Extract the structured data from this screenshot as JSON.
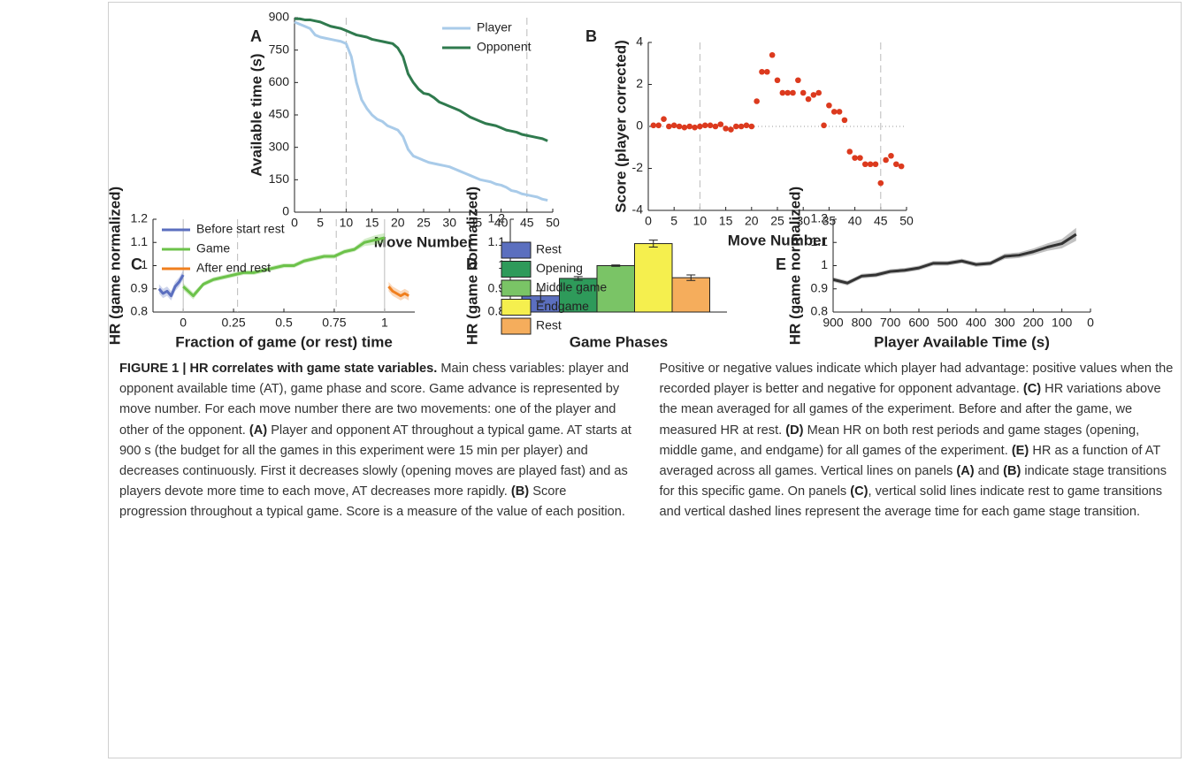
{
  "chart_data": [
    {
      "type": "line",
      "panel_label": "A",
      "xlabel": "Move Number",
      "ylabel": "Available time (s)",
      "x": [
        0,
        1,
        2,
        3,
        4,
        5,
        6,
        7,
        8,
        9,
        10,
        11,
        12,
        13,
        14,
        15,
        16,
        17,
        18,
        19,
        20,
        21,
        22,
        23,
        24,
        25,
        26,
        27,
        28,
        29,
        30,
        31,
        32,
        33,
        34,
        35,
        36,
        37,
        38,
        39,
        40,
        41,
        42,
        43,
        44,
        45,
        46,
        47,
        48,
        49
      ],
      "series": [
        {
          "name": "Player",
          "color": "#a9cbe9",
          "values": [
            880,
            870,
            860,
            850,
            820,
            810,
            805,
            800,
            795,
            790,
            780,
            720,
            600,
            520,
            480,
            450,
            430,
            420,
            400,
            390,
            380,
            350,
            290,
            260,
            250,
            240,
            230,
            225,
            220,
            215,
            210,
            200,
            190,
            180,
            170,
            160,
            150,
            145,
            140,
            130,
            125,
            115,
            100,
            95,
            85,
            80,
            75,
            70,
            60,
            55
          ]
        },
        {
          "name": "Opponent",
          "color": "#2f7a4e",
          "values": [
            895,
            895,
            890,
            890,
            885,
            880,
            870,
            860,
            855,
            850,
            840,
            830,
            820,
            815,
            810,
            800,
            795,
            790,
            785,
            780,
            760,
            720,
            640,
            600,
            570,
            550,
            545,
            530,
            510,
            500,
            490,
            480,
            470,
            455,
            440,
            430,
            420,
            410,
            405,
            400,
            390,
            380,
            375,
            370,
            360,
            355,
            350,
            345,
            340,
            330
          ]
        }
      ],
      "xlim": [
        0,
        50
      ],
      "ylim": [
        0,
        900
      ],
      "xticks": [
        0,
        5,
        10,
        15,
        20,
        25,
        30,
        35,
        40,
        45,
        50
      ],
      "yticks": [
        0,
        150,
        300,
        450,
        600,
        750,
        900
      ],
      "dashed_vlines": [
        10,
        45
      ],
      "legend": "upper right"
    },
    {
      "type": "scatter",
      "panel_label": "B",
      "xlabel": "Move Number",
      "ylabel": "Score (player corrected)",
      "color": "#dc3a1e",
      "x": [
        1,
        2,
        3,
        4,
        5,
        6,
        7,
        8,
        9,
        10,
        11,
        12,
        13,
        14,
        15,
        16,
        17,
        18,
        19,
        20,
        21,
        22,
        23,
        24,
        25,
        26,
        27,
        28,
        29,
        30,
        31,
        32,
        33,
        34,
        35,
        36,
        37,
        38,
        39,
        40,
        41,
        42,
        43,
        44,
        45,
        46,
        47,
        48,
        49
      ],
      "values": [
        0.05,
        0.05,
        0.35,
        0,
        0.05,
        0,
        -0.05,
        0,
        -0.05,
        0,
        0.05,
        0.05,
        0,
        0.1,
        -0.1,
        -0.15,
        0,
        0,
        0.05,
        0,
        1.2,
        2.6,
        2.6,
        3.4,
        2.2,
        1.6,
        1.6,
        1.6,
        2.2,
        1.6,
        1.3,
        1.5,
        1.6,
        0.05,
        1,
        0.7,
        0.7,
        0.3,
        -1.2,
        -1.5,
        -1.5,
        -1.8,
        -1.8,
        -1.8,
        -2.7,
        -1.6,
        -1.4,
        -1.8,
        -1.9
      ],
      "xlim": [
        0,
        50
      ],
      "ylim": [
        -4,
        4
      ],
      "xticks": [
        0,
        5,
        10,
        15,
        20,
        25,
        30,
        35,
        40,
        45,
        50
      ],
      "yticks": [
        -4,
        -2,
        0,
        2,
        4
      ],
      "dashed_vlines": [
        10,
        45
      ]
    },
    {
      "type": "line",
      "panel_label": "C",
      "xlabel": "Fraction of game (or rest) time",
      "ylabel": "HR (game normalized)",
      "series": [
        {
          "name": "Before start rest",
          "color": "#5b6fbf",
          "x": [
            -0.12,
            -0.1,
            -0.08,
            -0.06,
            -0.04,
            -0.02,
            0
          ],
          "values": [
            0.9,
            0.88,
            0.89,
            0.87,
            0.91,
            0.93,
            0.96
          ],
          "errors": [
            0.02,
            0.02,
            0.02,
            0.02,
            0.02,
            0.02,
            0.02
          ]
        },
        {
          "name": "Game",
          "color": "#6cc24a",
          "x": [
            0,
            0.05,
            0.1,
            0.15,
            0.2,
            0.25,
            0.3,
            0.35,
            0.4,
            0.45,
            0.5,
            0.55,
            0.6,
            0.65,
            0.7,
            0.75,
            0.8,
            0.85,
            0.9,
            0.95,
            1
          ],
          "values": [
            0.91,
            0.87,
            0.92,
            0.94,
            0.95,
            0.96,
            0.97,
            0.97,
            0.98,
            0.99,
            1,
            1,
            1.02,
            1.03,
            1.04,
            1.04,
            1.06,
            1.07,
            1.1,
            1.11,
            1.12
          ],
          "errors": [
            0.015,
            0.015,
            0.01,
            0.01,
            0.01,
            0.01,
            0.01,
            0.01,
            0.01,
            0.01,
            0.01,
            0.01,
            0.01,
            0.01,
            0.01,
            0.01,
            0.01,
            0.01,
            0.015,
            0.02,
            0.02
          ]
        },
        {
          "name": "After end rest",
          "color": "#f07f1e",
          "x": [
            1.02,
            1.04,
            1.06,
            1.08,
            1.1,
            1.12
          ],
          "values": [
            0.91,
            0.89,
            0.88,
            0.87,
            0.88,
            0.87
          ],
          "errors": [
            0.02,
            0.02,
            0.02,
            0.02,
            0.02,
            0.02
          ]
        }
      ],
      "xlim": [
        -0.15,
        1.15
      ],
      "ylim": [
        0.8,
        1.2
      ],
      "xticks": [
        0,
        0.25,
        0.5,
        0.75,
        1
      ],
      "yticks": [
        0.8,
        0.9,
        1,
        1.1,
        1.2
      ],
      "solid_vlines": [
        0,
        1
      ],
      "dashed_vlines": [
        0.27,
        0.76
      ],
      "legend": "upper left"
    },
    {
      "type": "bar",
      "panel_label": "D",
      "xlabel": "Game Phases",
      "ylabel": "HR (game normalized)",
      "categories": [
        "Rest",
        "Opening",
        "Middle game",
        "Endgame",
        "Rest"
      ],
      "values": [
        0.87,
        0.945,
        1,
        1.095,
        0.948
      ],
      "errors": [
        0.022,
        0.008,
        0.003,
        0.015,
        0.012
      ],
      "colors": [
        "#5b6fbf",
        "#2e9a5a",
        "#7ac466",
        "#f5ef4e",
        "#f5ad5c"
      ],
      "ylim": [
        0.8,
        1.2
      ],
      "yticks": [
        0.8,
        0.9,
        1,
        1.1,
        1.2
      ],
      "legend": "upper left"
    },
    {
      "type": "line",
      "panel_label": "E",
      "xlabel": "Player Available Time (s)",
      "ylabel": "HR (game normalized)",
      "x": [
        900,
        850,
        800,
        750,
        700,
        650,
        600,
        550,
        500,
        450,
        400,
        350,
        300,
        250,
        200,
        150,
        100,
        50
      ],
      "series": [
        {
          "color": "#333333",
          "values": [
            0.94,
            0.925,
            0.955,
            0.96,
            0.975,
            0.98,
            0.99,
            1.01,
            1.01,
            1.02,
            1.005,
            1.01,
            1.04,
            1.045,
            1.06,
            1.08,
            1.095,
            1.135
          ],
          "errors": [
            0.01,
            0.01,
            0.01,
            0.01,
            0.01,
            0.01,
            0.01,
            0.01,
            0.01,
            0.01,
            0.01,
            0.01,
            0.012,
            0.012,
            0.014,
            0.016,
            0.02,
            0.028
          ]
        }
      ],
      "xlim": [
        900,
        0
      ],
      "ylim": [
        0.8,
        1.2
      ],
      "xticks": [
        900,
        800,
        700,
        600,
        500,
        400,
        300,
        200,
        100,
        0
      ],
      "yticks": [
        0.8,
        0.9,
        1,
        1.1,
        1.2
      ]
    }
  ],
  "caption": {
    "runs": [
      "FIGURE 1 | HR correlates with game state variables.",
      " Main chess variables: player and opponent available time (AT), game phase and score. Game advance is represented by move number. For each move number there are two movements: one of the player and other of the opponent. ",
      "(A)",
      " Player and opponent AT throughout a typical game. AT starts at 900 s (the budget for all the games in this experiment were 15 min per player) and decreases continuously. First it decreases slowly (opening moves are played fast) and as players devote more time to each move, AT decreases more rapidly. ",
      "(B)",
      " Score progression throughout a typical game. Score is a measure of the value of each position. Positive or negative values indicate which player had advantage: positive values when the recorded player is better and negative for opponent advantage. ",
      "(C)",
      " HR variations above the mean averaged for all games of the experiment. Before and after the game, we measured HR at rest. ",
      "(D)",
      " Mean HR on both rest periods and game stages (opening, middle game, and endgame) for all games of the experiment. ",
      "(E)",
      " HR as a function of AT averaged across all games. Vertical lines on panels ",
      "(A)",
      " and ",
      "(B)",
      " indicate stage transitions for this specific game. On panels ",
      "(C)",
      ", vertical solid lines indicate rest to game transitions and vertical dashed lines represent the average time for each game stage transition."
    ]
  }
}
